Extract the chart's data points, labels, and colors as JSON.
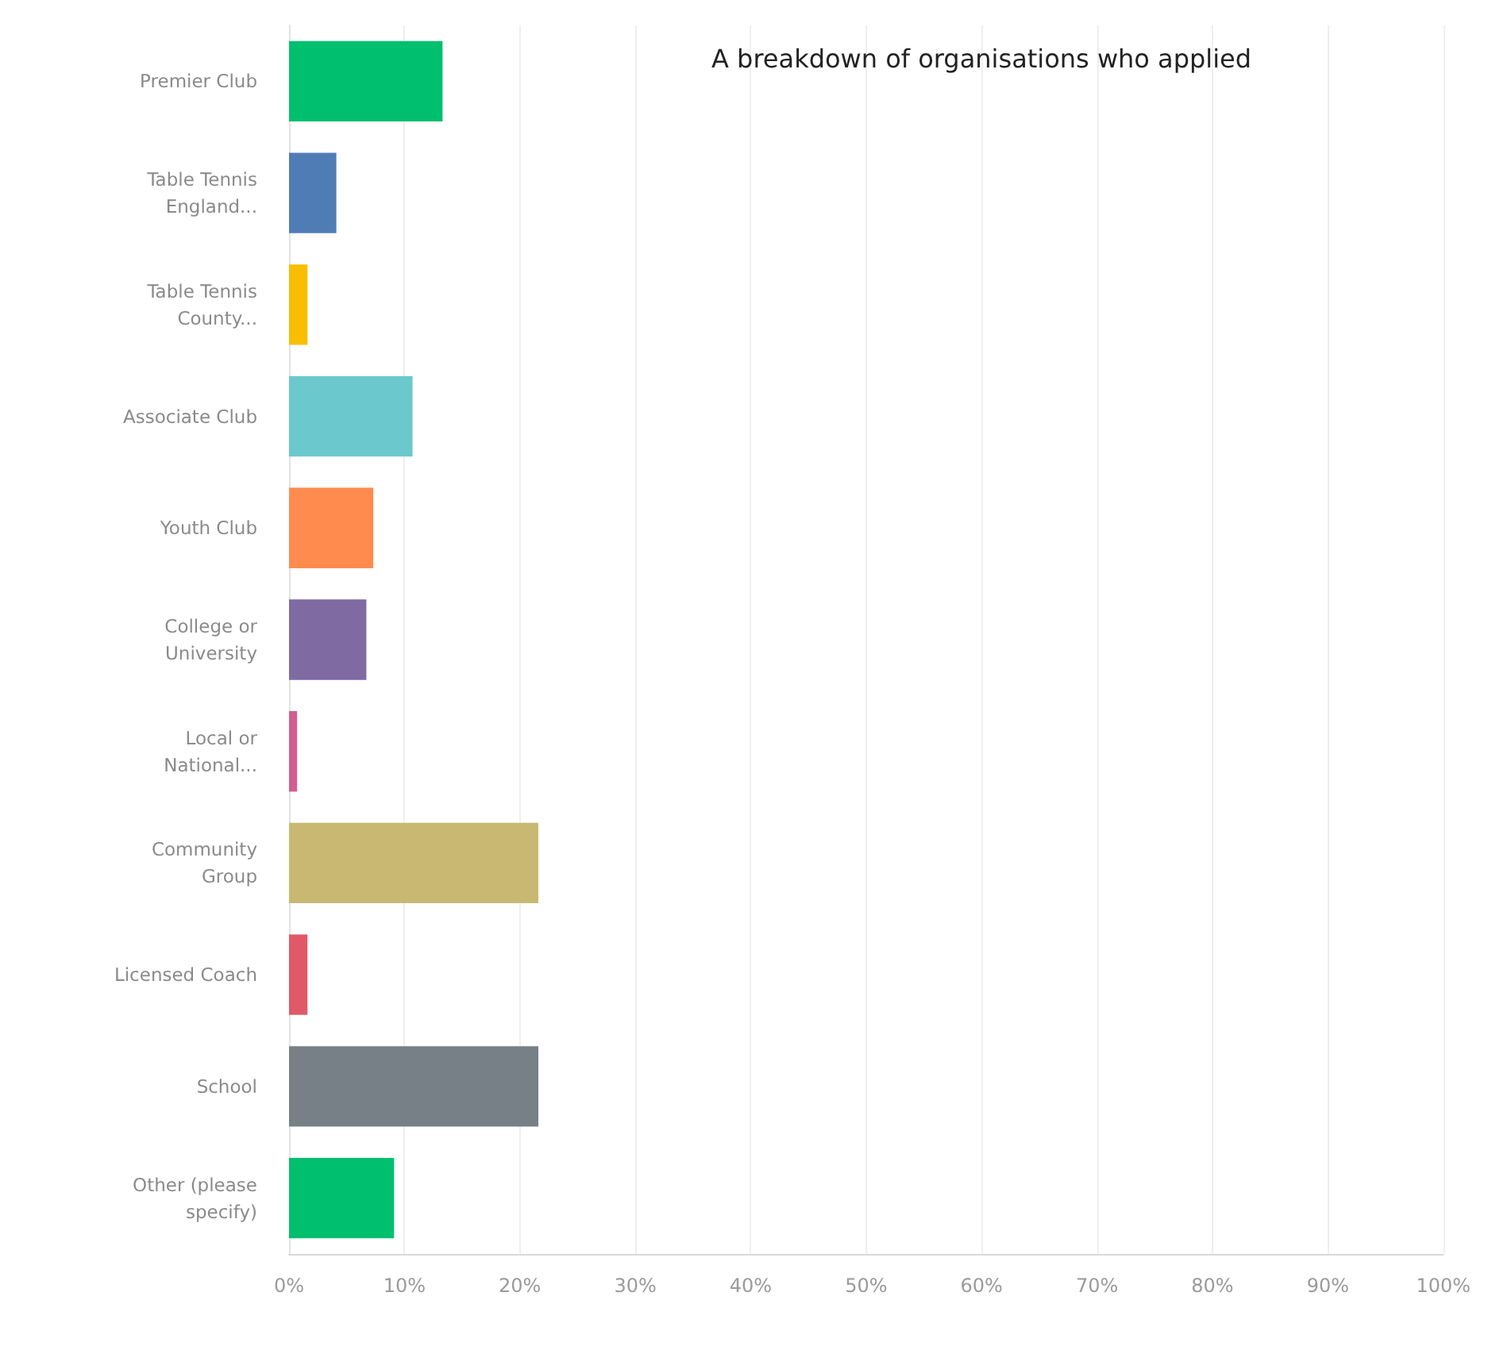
{
  "chart_data": {
    "type": "bar",
    "orientation": "horizontal",
    "title": "A breakdown of organisations who applied",
    "categories": [
      "Premier Club",
      "Table Tennis\nEngland...",
      "Table Tennis\nCounty...",
      "Associate Club",
      "Youth Club",
      "College or\nUniversity",
      "Local or\nNational...",
      "Community\nGroup",
      "Licensed Coach",
      "School",
      "Other (please\nspecify)"
    ],
    "values": [
      13.3,
      4.1,
      1.6,
      10.7,
      7.3,
      6.7,
      0.7,
      21.6,
      1.6,
      21.6,
      9.1
    ],
    "colors": [
      "#00bf6f",
      "#507cb6",
      "#f9be00",
      "#6bc8cd",
      "#ff8b4f",
      "#7f6aa2",
      "#d25f90",
      "#c9b872",
      "#e05966",
      "#768086",
      "#00bf6f"
    ],
    "xlim": [
      0,
      100
    ],
    "xticks": [
      {
        "value": 0,
        "label": "0%"
      },
      {
        "value": 10,
        "label": "10%"
      },
      {
        "value": 20,
        "label": "20%"
      },
      {
        "value": 30,
        "label": "30%"
      },
      {
        "value": 40,
        "label": "40%"
      },
      {
        "value": 50,
        "label": "50%"
      },
      {
        "value": 60,
        "label": "60%"
      },
      {
        "value": 70,
        "label": "70%"
      },
      {
        "value": 80,
        "label": "80%"
      },
      {
        "value": 90,
        "label": "90%"
      },
      {
        "value": 100,
        "label": "100%"
      }
    ],
    "grid": "x"
  }
}
